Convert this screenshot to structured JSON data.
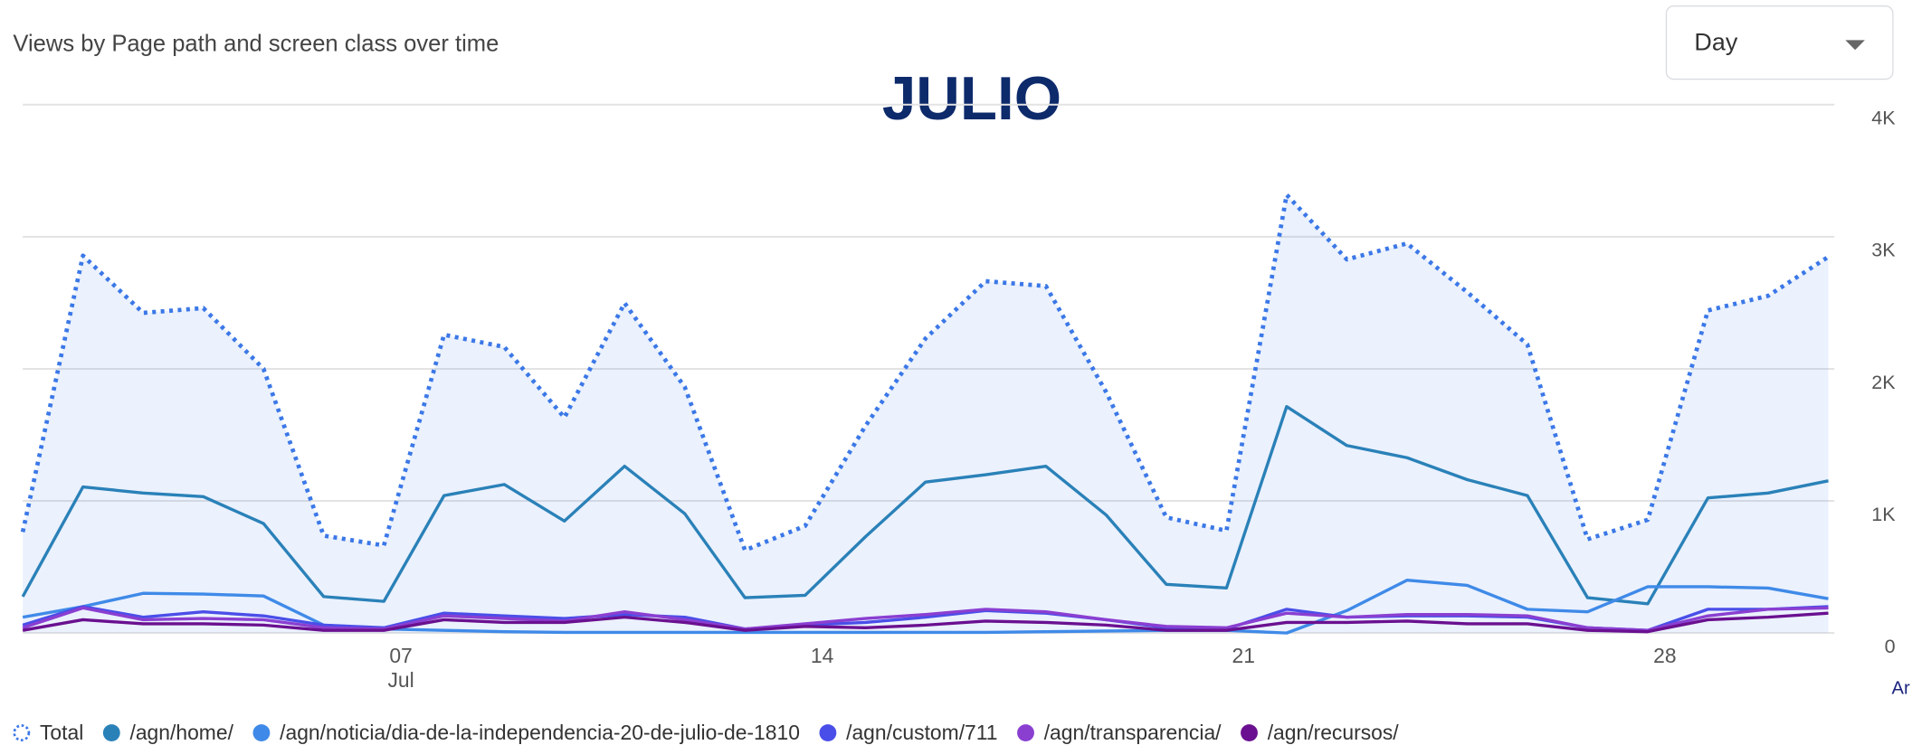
{
  "chart_data": {
    "type": "line",
    "subtitle": "Views by Page path and screen class over time",
    "title": "JULIO",
    "control": "Day",
    "corner_text": "Ar",
    "x_sublabel": "Jul",
    "categories": [
      null,
      null,
      null,
      null,
      null,
      null,
      "07",
      null,
      null,
      null,
      null,
      null,
      null,
      "14",
      null,
      null,
      null,
      null,
      null,
      null,
      "21",
      null,
      null,
      null,
      null,
      null,
      null,
      "28",
      null,
      null,
      null
    ],
    "ylim": [
      0,
      4000
    ],
    "yticks": [
      {
        "value": 0,
        "label": "0"
      },
      {
        "value": 1000,
        "label": "1K"
      },
      {
        "value": 2000,
        "label": "2K"
      },
      {
        "value": 3000,
        "label": "3K"
      },
      {
        "value": 4000,
        "label": "4K"
      }
    ],
    "grid": true,
    "series": [
      {
        "name": "Total",
        "color": "#3b78e7",
        "style": "dotted",
        "area": true,
        "values": [
          765,
          2857,
          2424,
          2460,
          2000,
          737,
          663,
          2258,
          2166,
          1631,
          2498,
          1862,
          627,
          811,
          1567,
          2230,
          2664,
          2627,
          1825,
          876,
          774,
          3318,
          2829,
          2949,
          2581,
          2184,
          710,
          857,
          2442,
          2553,
          2848
        ]
      },
      {
        "name": "/agn/home/",
        "color": "#2a81b8",
        "values": [
          276,
          1106,
          1060,
          1032,
          829,
          276,
          240,
          1041,
          1124,
          848,
          1263,
          903,
          267,
          286,
          728,
          1143,
          1198,
          1263,
          894,
          369,
          341,
          1714,
          1419,
          1327,
          1161,
          1041,
          267,
          221,
          1023,
          1060,
          1152
        ]
      },
      {
        "name": "/agn/noticia/dia-de-la-independencia-20-de-julio-de-1810",
        "color": "#3f8ae8",
        "values": [
          120,
          200,
          300,
          295,
          280,
          60,
          30,
          20,
          10,
          5,
          5,
          5,
          5,
          5,
          5,
          5,
          5,
          10,
          15,
          20,
          20,
          0,
          170,
          400,
          360,
          180,
          160,
          350,
          350,
          340,
          260
        ]
      },
      {
        "name": "/agn/custom/711",
        "color": "#4a4ee8",
        "values": [
          60,
          200,
          120,
          160,
          130,
          60,
          40,
          150,
          130,
          110,
          140,
          120,
          30,
          60,
          80,
          120,
          170,
          150,
          100,
          40,
          30,
          180,
          120,
          130,
          130,
          120,
          40,
          20,
          180,
          180,
          200
        ]
      },
      {
        "name": "/agn/transparencia/",
        "color": "#8a3fd1",
        "values": [
          40,
          190,
          100,
          110,
          100,
          40,
          30,
          130,
          110,
          90,
          160,
          100,
          30,
          70,
          110,
          140,
          180,
          160,
          100,
          50,
          40,
          150,
          120,
          140,
          140,
          130,
          40,
          20,
          130,
          180,
          190
        ]
      },
      {
        "name": "/agn/recursos/",
        "color": "#6a1090",
        "values": [
          20,
          100,
          70,
          70,
          60,
          20,
          20,
          100,
          80,
          80,
          120,
          80,
          20,
          50,
          40,
          60,
          90,
          80,
          60,
          20,
          20,
          80,
          80,
          90,
          70,
          70,
          20,
          10,
          100,
          120,
          150
        ]
      }
    ]
  }
}
